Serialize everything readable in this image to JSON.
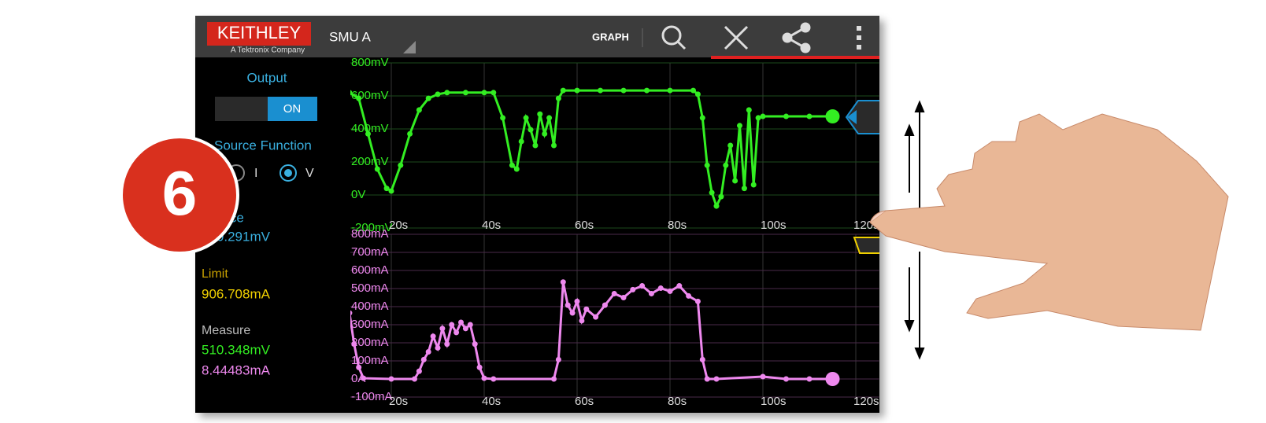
{
  "header": {
    "logo": "KEITHLEY",
    "logo_subtitle": "A Tektronix Company",
    "instrument": "SMU A",
    "view": "GRAPH"
  },
  "panel": {
    "output_label": "Output",
    "output_state": "ON",
    "source_function_label": "Source Function",
    "option_i": "I",
    "option_v": "V",
    "source_label": "Source",
    "source_value": "510.291mV",
    "limit_label": "Limit",
    "limit_value": "906.708mA",
    "measure_label": "Measure",
    "measure_voltage": "510.348mV",
    "measure_current": "8.44483mA"
  },
  "step_badge": "6",
  "chart_data": [
    {
      "type": "line",
      "color": "#33ee22",
      "grid": true,
      "x": [
        11,
        13,
        15,
        17,
        19,
        20,
        22,
        24,
        26,
        28,
        30,
        32,
        36,
        40,
        42,
        44,
        46,
        47,
        48,
        49,
        50,
        51,
        52,
        53,
        54,
        55,
        56,
        57,
        60,
        65,
        70,
        75,
        80,
        85,
        86,
        87,
        88,
        89,
        90,
        91,
        92,
        93,
        94,
        95,
        96,
        97,
        98,
        99,
        100,
        105,
        110,
        115
      ],
      "values": [
        620,
        585,
        370,
        157,
        40,
        24,
        180,
        370,
        515,
        585,
        610,
        620,
        620,
        620,
        620,
        467,
        180,
        157,
        324,
        467,
        395,
        300,
        490,
        370,
        467,
        300,
        585,
        633,
        633,
        633,
        633,
        633,
        633,
        633,
        610,
        467,
        180,
        14,
        -67,
        -10,
        180,
        300,
        86,
        420,
        40,
        515,
        62,
        467,
        476,
        476,
        476,
        476
      ],
      "xlim": [
        11,
        125
      ],
      "ylim": [
        -200,
        800
      ],
      "xticks": [
        {
          "value": 20,
          "label": "20s"
        },
        {
          "value": 40,
          "label": "40s"
        },
        {
          "value": 60,
          "label": "60s"
        },
        {
          "value": 80,
          "label": "80s"
        },
        {
          "value": 100,
          "label": "100s"
        },
        {
          "value": 120,
          "label": "120s"
        }
      ],
      "yticks": [
        {
          "value": -200,
          "label": "-200mV"
        },
        {
          "value": 0,
          "label": "0V"
        },
        {
          "value": 200,
          "label": "200mV"
        },
        {
          "value": 400,
          "label": "400mV"
        },
        {
          "value": 600,
          "label": "600mV"
        },
        {
          "value": 800,
          "label": "800mV"
        }
      ]
    },
    {
      "type": "line",
      "color": "#ee88ee",
      "grid": true,
      "x": [
        11,
        12,
        13,
        14,
        20,
        25,
        26,
        27,
        28,
        29,
        30,
        31,
        32,
        33,
        34,
        35,
        36,
        37,
        38,
        39,
        40,
        42,
        55,
        56,
        57,
        58,
        59,
        60,
        61,
        62,
        64,
        66,
        68,
        70,
        72,
        74,
        76,
        78,
        80,
        82,
        84,
        86,
        87,
        88,
        90,
        100,
        105,
        110,
        115
      ],
      "values": [
        365,
        193,
        64,
        4,
        0,
        0,
        43,
        107,
        150,
        236,
        172,
        279,
        193,
        300,
        257,
        313,
        279,
        300,
        193,
        64,
        4,
        0,
        0,
        107,
        536,
        408,
        365,
        429,
        322,
        386,
        343,
        408,
        472,
        450,
        494,
        515,
        472,
        502,
        485,
        515,
        459,
        429,
        107,
        0,
        0,
        13,
        0,
        0,
        0
      ],
      "xlim": [
        11,
        125
      ],
      "ylim": [
        -100,
        800
      ],
      "xticks": [
        {
          "value": 20,
          "label": "20s"
        },
        {
          "value": 40,
          "label": "40s"
        },
        {
          "value": 60,
          "label": "60s"
        },
        {
          "value": 80,
          "label": "80s"
        },
        {
          "value": 100,
          "label": "100s"
        },
        {
          "value": 120,
          "label": "120s"
        }
      ],
      "yticks": [
        {
          "value": -100,
          "label": "-100mA"
        },
        {
          "value": 0,
          "label": "0A"
        },
        {
          "value": 100,
          "label": "100mA"
        },
        {
          "value": 200,
          "label": "200mA"
        },
        {
          "value": 300,
          "label": "300mA"
        },
        {
          "value": 400,
          "label": "400mA"
        },
        {
          "value": 500,
          "label": "500mA"
        },
        {
          "value": 600,
          "label": "600mA"
        },
        {
          "value": 700,
          "label": "700mA"
        },
        {
          "value": 800,
          "label": "800mA"
        }
      ]
    }
  ]
}
